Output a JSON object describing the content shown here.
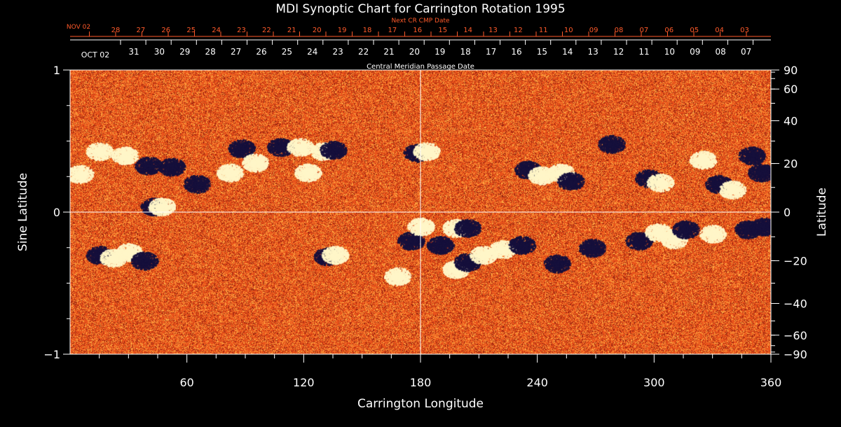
{
  "chart_data": {
    "type": "heatmap",
    "title": "MDI Synoptic Chart for Carrington Rotation 1995",
    "xlabel": "Carrington Longitude",
    "ylabel_left": "Sine Latitude",
    "ylabel_right": "Latitude",
    "xlim": [
      0,
      360
    ],
    "ylim": [
      -1,
      1
    ],
    "x_ticks": [
      60,
      120,
      180,
      240,
      300,
      360
    ],
    "y_ticks_left": [
      1,
      0,
      -1
    ],
    "y_ticks_right": [
      90,
      60,
      40,
      20,
      0,
      -20,
      -40,
      -60,
      -90
    ],
    "reference_lines": {
      "longitude": 180,
      "sine_latitude": 0
    },
    "top_axis_upper": {
      "label": "Next CR CMP Date",
      "color": "#ff5a2a",
      "month_label": "NOV 02",
      "days": [
        "28",
        "27",
        "26",
        "25",
        "24",
        "23",
        "22",
        "21",
        "20",
        "19",
        "18",
        "17",
        "16",
        "15",
        "14",
        "13",
        "12",
        "11",
        "10",
        "09",
        "08",
        "07",
        "06",
        "05",
        "04",
        "03"
      ]
    },
    "top_axis_lower": {
      "label": "Central Meridian Passage Date",
      "month_label": "OCT 02",
      "days": [
        "31",
        "30",
        "29",
        "28",
        "27",
        "26",
        "25",
        "24",
        "23",
        "22",
        "21",
        "20",
        "19",
        "18",
        "17",
        "16",
        "15",
        "14",
        "13",
        "12",
        "11",
        "10",
        "09",
        "08",
        "07"
      ]
    },
    "colormap": {
      "background": "#e8531b",
      "positive": "#fff6c8",
      "negative": "#16103c",
      "noise_light": "#ffa640",
      "noise_dark": "#9a2410"
    },
    "active_regions": [
      {
        "lon": 5,
        "lat": 0.27,
        "polarity": "positive"
      },
      {
        "lon": 15,
        "lat": 0.43,
        "polarity": "positive"
      },
      {
        "lon": 28,
        "lat": 0.4,
        "polarity": "positive"
      },
      {
        "lon": 40,
        "lat": 0.33,
        "polarity": "negative"
      },
      {
        "lon": 43,
        "lat": 0.04,
        "polarity": "negative"
      },
      {
        "lon": 47,
        "lat": 0.04,
        "polarity": "positive"
      },
      {
        "lon": 52,
        "lat": 0.32,
        "polarity": "negative"
      },
      {
        "lon": 65,
        "lat": 0.2,
        "polarity": "negative"
      },
      {
        "lon": 82,
        "lat": 0.28,
        "polarity": "positive"
      },
      {
        "lon": 88,
        "lat": 0.45,
        "polarity": "negative"
      },
      {
        "lon": 95,
        "lat": 0.35,
        "polarity": "positive"
      },
      {
        "lon": 108,
        "lat": 0.46,
        "polarity": "negative"
      },
      {
        "lon": 118,
        "lat": 0.46,
        "polarity": "positive"
      },
      {
        "lon": 122,
        "lat": 0.28,
        "polarity": "positive"
      },
      {
        "lon": 130,
        "lat": 0.43,
        "polarity": "positive"
      },
      {
        "lon": 135,
        "lat": 0.44,
        "polarity": "negative"
      },
      {
        "lon": 178,
        "lat": 0.42,
        "polarity": "negative"
      },
      {
        "lon": 183,
        "lat": 0.43,
        "polarity": "positive"
      },
      {
        "lon": 235,
        "lat": 0.3,
        "polarity": "negative"
      },
      {
        "lon": 242,
        "lat": 0.26,
        "polarity": "positive"
      },
      {
        "lon": 252,
        "lat": 0.28,
        "polarity": "positive"
      },
      {
        "lon": 257,
        "lat": 0.22,
        "polarity": "negative"
      },
      {
        "lon": 278,
        "lat": 0.48,
        "polarity": "negative"
      },
      {
        "lon": 297,
        "lat": 0.24,
        "polarity": "negative"
      },
      {
        "lon": 303,
        "lat": 0.21,
        "polarity": "positive"
      },
      {
        "lon": 325,
        "lat": 0.37,
        "polarity": "positive"
      },
      {
        "lon": 333,
        "lat": 0.2,
        "polarity": "negative"
      },
      {
        "lon": 340,
        "lat": 0.16,
        "polarity": "positive"
      },
      {
        "lon": 350,
        "lat": 0.4,
        "polarity": "negative"
      },
      {
        "lon": 355,
        "lat": 0.28,
        "polarity": "negative"
      },
      {
        "lon": 15,
        "lat": -0.3,
        "polarity": "negative"
      },
      {
        "lon": 22,
        "lat": -0.32,
        "polarity": "positive"
      },
      {
        "lon": 30,
        "lat": -0.28,
        "polarity": "positive"
      },
      {
        "lon": 38,
        "lat": -0.34,
        "polarity": "negative"
      },
      {
        "lon": 132,
        "lat": -0.31,
        "polarity": "negative"
      },
      {
        "lon": 136,
        "lat": -0.3,
        "polarity": "positive"
      },
      {
        "lon": 168,
        "lat": -0.45,
        "polarity": "positive"
      },
      {
        "lon": 175,
        "lat": -0.2,
        "polarity": "negative"
      },
      {
        "lon": 180,
        "lat": -0.1,
        "polarity": "positive"
      },
      {
        "lon": 190,
        "lat": -0.23,
        "polarity": "negative"
      },
      {
        "lon": 198,
        "lat": -0.11,
        "polarity": "positive"
      },
      {
        "lon": 204,
        "lat": -0.11,
        "polarity": "negative"
      },
      {
        "lon": 198,
        "lat": -0.4,
        "polarity": "positive"
      },
      {
        "lon": 204,
        "lat": -0.35,
        "polarity": "negative"
      },
      {
        "lon": 212,
        "lat": -0.3,
        "polarity": "positive"
      },
      {
        "lon": 222,
        "lat": -0.26,
        "polarity": "positive"
      },
      {
        "lon": 232,
        "lat": -0.23,
        "polarity": "negative"
      },
      {
        "lon": 250,
        "lat": -0.36,
        "polarity": "negative"
      },
      {
        "lon": 268,
        "lat": -0.25,
        "polarity": "negative"
      },
      {
        "lon": 292,
        "lat": -0.2,
        "polarity": "negative"
      },
      {
        "lon": 302,
        "lat": -0.14,
        "polarity": "positive"
      },
      {
        "lon": 310,
        "lat": -0.19,
        "polarity": "positive"
      },
      {
        "lon": 316,
        "lat": -0.12,
        "polarity": "negative"
      },
      {
        "lon": 330,
        "lat": -0.15,
        "polarity": "positive"
      },
      {
        "lon": 348,
        "lat": -0.12,
        "polarity": "negative"
      },
      {
        "lon": 356,
        "lat": -0.1,
        "polarity": "negative"
      }
    ]
  }
}
